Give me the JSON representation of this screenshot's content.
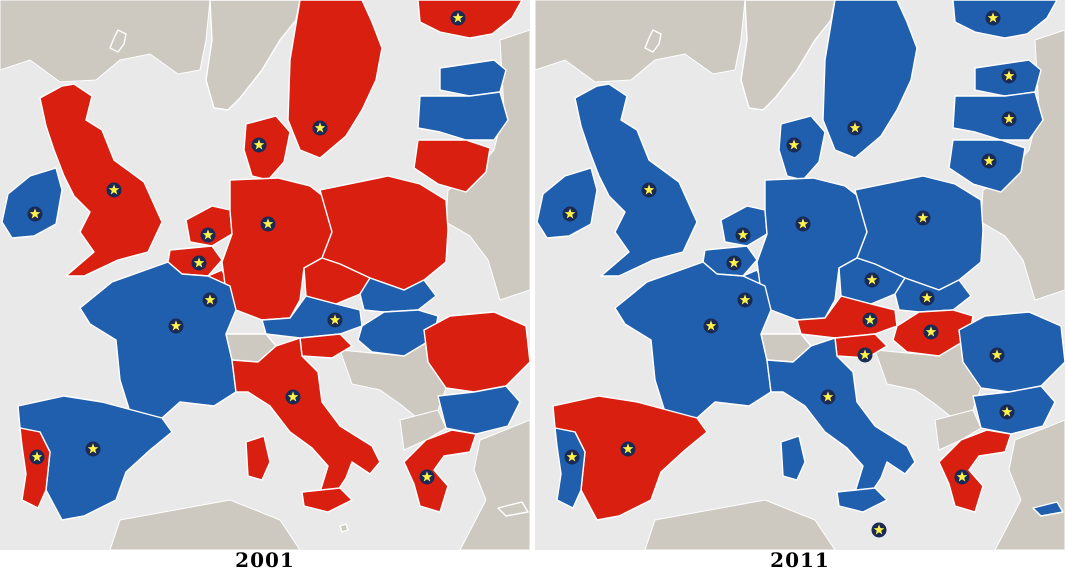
{
  "colors": {
    "sea": "#e9e9e9",
    "non_eu_land": "#cdc9c0",
    "red": "#d81f10",
    "blue": "#1f5fad",
    "border": "#ffffff",
    "star_fill": "#fff34a",
    "star_ring": "#1b2a55"
  },
  "legend_meaning": {
    "red": "",
    "blue": ""
  },
  "maps": [
    {
      "year": "2001",
      "countries": {
        "iceland": "non-eu",
        "norway": "non-eu",
        "finland": "red",
        "sweden": "red",
        "estonia": "blue",
        "latvia": "blue",
        "lithuania": "red",
        "ireland": "blue",
        "uk": "red",
        "denmark": "red",
        "netherlands": "red",
        "belgium": "red",
        "luxembourg": "red",
        "germany": "red",
        "poland": "red",
        "czech": "red",
        "slovakia": "blue",
        "austria": "blue",
        "hungary": "blue",
        "slovenia": "red",
        "france": "blue",
        "switzerland": "non-eu",
        "italy": "red",
        "spain": "blue",
        "portugal": "red",
        "romania": "red",
        "bulgaria": "blue",
        "greece": "red",
        "cyprus": "non-eu",
        "malta": "non-eu"
      },
      "stars": [
        "finland",
        "sweden",
        "denmark",
        "ireland",
        "uk",
        "netherlands",
        "belgium",
        "luxembourg",
        "germany",
        "austria",
        "france",
        "italy",
        "spain",
        "portugal",
        "greece"
      ]
    },
    {
      "year": "2011",
      "countries": {
        "iceland": "non-eu",
        "norway": "non-eu",
        "finland": "blue",
        "sweden": "blue",
        "estonia": "blue",
        "latvia": "blue",
        "lithuania": "blue",
        "ireland": "blue",
        "uk": "blue",
        "denmark": "blue",
        "netherlands": "blue",
        "belgium": "blue",
        "luxembourg": "blue",
        "germany": "blue",
        "poland": "blue",
        "czech": "blue",
        "slovakia": "blue",
        "austria": "red",
        "hungary": "red",
        "slovenia": "red",
        "france": "blue",
        "switzerland": "non-eu",
        "italy": "blue",
        "spain": "red",
        "portugal": "blue",
        "romania": "blue",
        "bulgaria": "blue",
        "greece": "red",
        "cyprus": "blue",
        "malta": "non-eu"
      },
      "stars": [
        "finland",
        "sweden",
        "estonia",
        "latvia",
        "lithuania",
        "denmark",
        "ireland",
        "uk",
        "netherlands",
        "belgium",
        "luxembourg",
        "germany",
        "poland",
        "czech",
        "slovakia",
        "austria",
        "hungary",
        "slovenia",
        "france",
        "italy",
        "spain",
        "portugal",
        "romania",
        "bulgaria",
        "greece",
        "malta"
      ]
    }
  ]
}
